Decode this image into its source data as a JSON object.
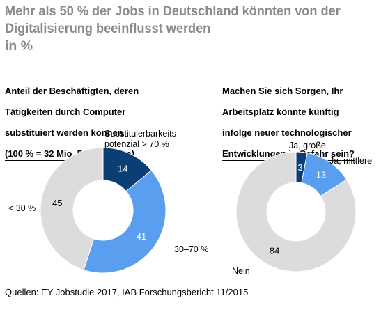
{
  "title": "Mehr als 50 % der Jobs in Deutschland könnten von der Digitalisierung beeinflusst werden",
  "subtitle": "in %",
  "source": "Quellen: EY Jobstudie 2017, IAB Forschungsbericht 11/2015",
  "colors": {
    "dark": "#0b3e74",
    "medium": "#5a9ef0",
    "light": "#dcdcdc",
    "title": "#8a8a8a"
  },
  "chart_data": [
    {
      "type": "pie",
      "title": "Anteil der Beschäftigten, deren Tätigkeiten durch Computer substituiert werden können (100 % = 32 Mio. Beschäftigte)",
      "title_lines": [
        "Anteil der Beschäftigten, deren",
        "Tätigkeiten durch Computer",
        "substituiert werden können",
        "(100 % = 32 Mio. Beschäftigte)"
      ],
      "slices": [
        {
          "label": "Substituierbarkeits-potenzial > 70 %",
          "label_lines": [
            "Substituierbarkeits-",
            "potenzial > 70 %"
          ],
          "value": 14,
          "color": "#0b3e74"
        },
        {
          "label": "30–70 %",
          "label_lines": [
            "30–70 %"
          ],
          "value": 41,
          "color": "#5a9ef0"
        },
        {
          "label": "< 30 %",
          "label_lines": [
            "< 30 %"
          ],
          "value": 45,
          "color": "#dcdcdc"
        }
      ]
    },
    {
      "type": "pie",
      "title": "Machen Sie sich Sorgen, Ihr Arbeitsplatz könnte künftig infolge neuer technologischer Entwicklungen in Gefahr sein?",
      "title_lines": [
        "Machen Sie sich Sorgen, Ihr",
        "Arbeitsplatz könnte künftig",
        "infolge neuer technologischer",
        "Entwicklungen in Gefahr sein?"
      ],
      "slices": [
        {
          "label": "Ja, große",
          "label_lines": [
            "Ja, große"
          ],
          "value": 3,
          "color": "#0b3e74"
        },
        {
          "label": "Ja, mittlere",
          "label_lines": [
            "Ja, mittlere"
          ],
          "value": 13,
          "color": "#5a9ef0"
        },
        {
          "label": "Nein",
          "label_lines": [
            "Nein"
          ],
          "value": 84,
          "color": "#dcdcdc"
        }
      ]
    }
  ]
}
